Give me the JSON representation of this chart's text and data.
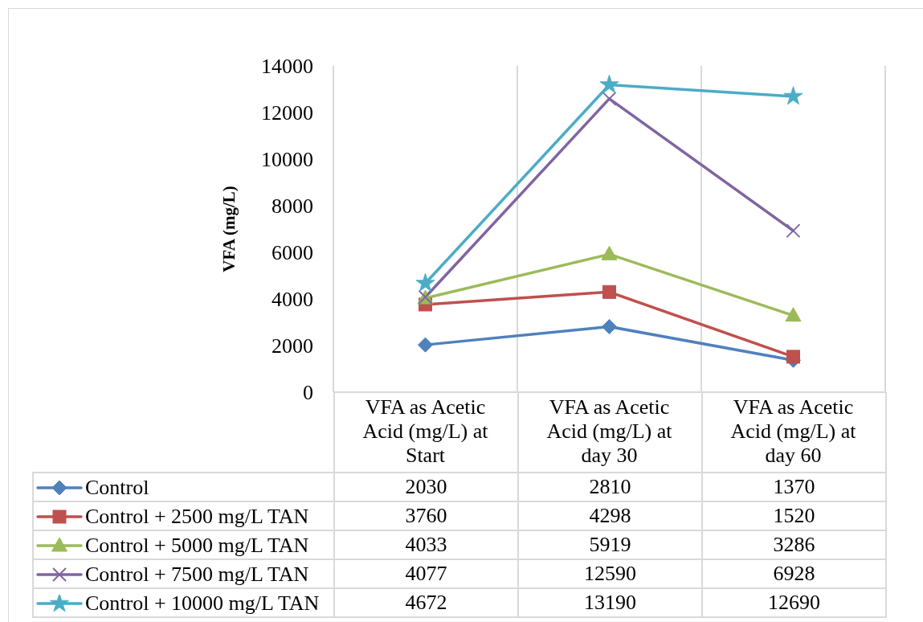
{
  "chart_data": {
    "type": "line",
    "ylabel": "VFA (mg/L)",
    "categories": [
      "VFA as Acetic Acid (mg/L) at Start",
      "VFA as Acetic Acid (mg/L) at day 30",
      "VFA as Acetic Acid (mg/L) at day 60"
    ],
    "ylim": [
      0,
      14000
    ],
    "yticks": [
      0,
      2000,
      4000,
      6000,
      8000,
      10000,
      12000,
      14000
    ],
    "grid": "x",
    "legend": "bottom",
    "data_labels": true,
    "line_style": "solid",
    "series": [
      {
        "name": "Control",
        "color": "#4f81bd",
        "marker": "diamond",
        "values": [
          2030,
          2810,
          1370
        ]
      },
      {
        "name": "Control + 2500 mg/L TAN",
        "color": "#c0504d",
        "marker": "square",
        "values": [
          3760,
          4298,
          1520
        ]
      },
      {
        "name": "Control + 5000 mg/L TAN",
        "color": "#9bbb59",
        "marker": "triangle",
        "values": [
          4033,
          5919,
          3286
        ]
      },
      {
        "name": "Control + 7500 mg/L TAN",
        "color": "#8064a2",
        "marker": "cross",
        "values": [
          4077,
          12590,
          6928
        ]
      },
      {
        "name": "Control + 10000 mg/L TAN",
        "color": "#4bacc6",
        "marker": "star",
        "values": [
          4672,
          13190,
          12690
        ]
      }
    ]
  }
}
